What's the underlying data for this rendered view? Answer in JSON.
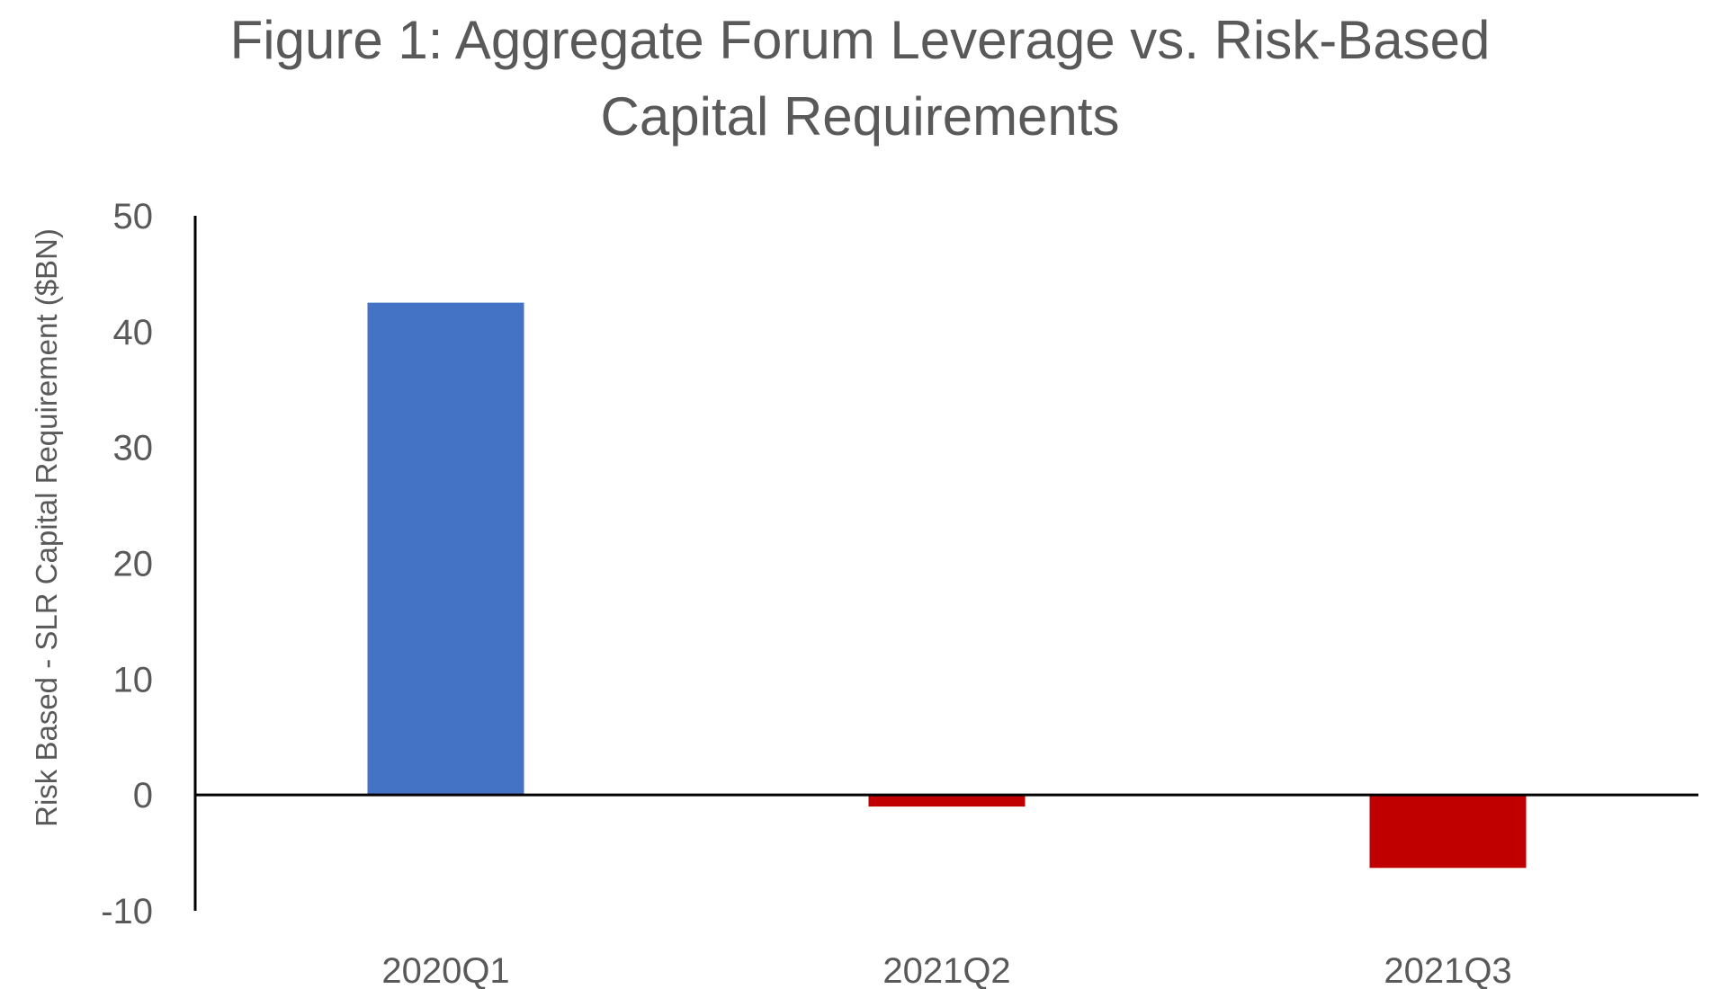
{
  "chart_data": {
    "type": "bar",
    "title_lines": [
      "Figure 1: Aggregate Forum Leverage vs. Risk-Based",
      "Capital Requirements"
    ],
    "xlabel": "",
    "ylabel": "Risk Based - SLR  Capital Requirement ($BN)",
    "categories": [
      "2020Q1",
      "2021Q2",
      "2021Q3"
    ],
    "values": [
      42.5,
      -1.0,
      -6.3
    ],
    "ylim": [
      -10,
      50
    ],
    "yticks": [
      50,
      40,
      30,
      20,
      10,
      0,
      -10
    ],
    "ytick_labels": [
      "50",
      "40",
      "30",
      "20",
      "10",
      "0",
      "-10"
    ],
    "colors": {
      "positive": "#4472C4",
      "negative": "#C00000",
      "axis": "#000000",
      "text": "#595959"
    },
    "grid": false,
    "legend": "none"
  }
}
